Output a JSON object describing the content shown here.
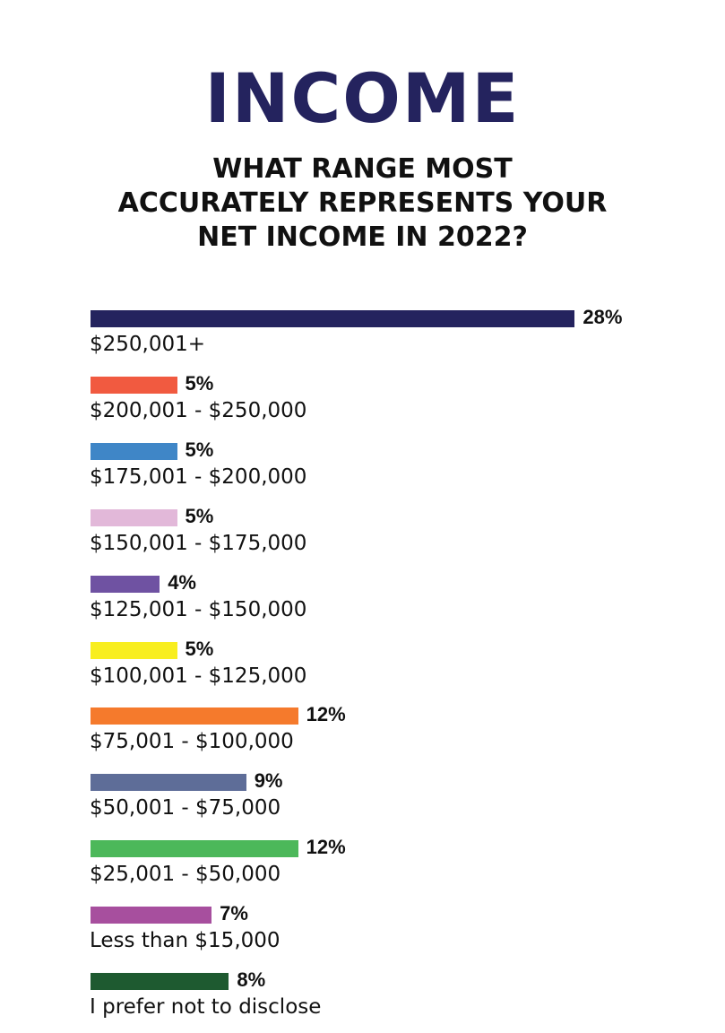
{
  "chart_data": {
    "type": "bar",
    "orientation": "horizontal",
    "title": "INCOME",
    "subtitle": [
      "WHAT RANGE MOST",
      "ACCURATELY REPRESENTS YOUR",
      "NET INCOME IN 2022?"
    ],
    "categories": [
      "$250,001+",
      "$200,001 - $250,000",
      "$175,001 - $200,000",
      "$150,001 - $175,000",
      "$125,001 - $150,000",
      "$100,001 - $125,000",
      "$75,001 - $100,000",
      "$50,001 - $75,000",
      "$25,001 - $50,000",
      "Less than $15,000",
      "I prefer not to disclose"
    ],
    "values": [
      28,
      5,
      5,
      5,
      4,
      5,
      12,
      9,
      12,
      7,
      8
    ],
    "value_labels": [
      "28%",
      "5%",
      "5%",
      "5%",
      "4%",
      "5%",
      "12%",
      "9%",
      "12%",
      "7%",
      "8%"
    ],
    "colors": [
      "#24235e",
      "#f15a40",
      "#3f86c7",
      "#e2b8d9",
      "#6f52a2",
      "#f8ee1f",
      "#f57a2c",
      "#5e6d98",
      "#4cb85a",
      "#a74f9e",
      "#1e5a30"
    ],
    "grid": false,
    "legend": "none"
  }
}
